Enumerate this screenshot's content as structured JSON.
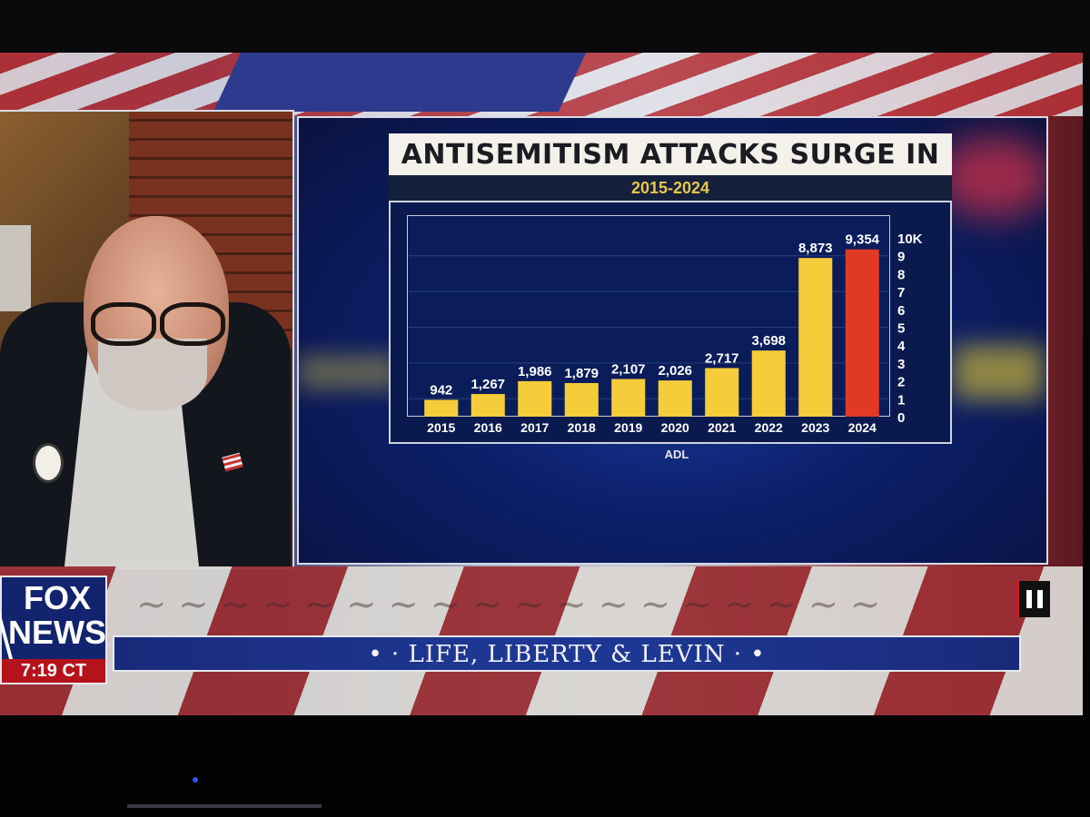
{
  "network": {
    "logo_line1": "FOX",
    "logo_line2": "NEWS",
    "time": "7:19 CT"
  },
  "show": {
    "title": "LIFE, LIBERTY & LEVIN",
    "title_prefix": "• ·",
    "title_suffix": "· •"
  },
  "graphic": {
    "source": "ADL"
  },
  "chart_data": {
    "type": "bar",
    "title": "ANTISEMITISM ATTACKS SURGE IN U.S.",
    "subtitle": "2015-2024",
    "categories": [
      "2015",
      "2016",
      "2017",
      "2018",
      "2019",
      "2020",
      "2021",
      "2022",
      "2023",
      "2024"
    ],
    "values": [
      942,
      1267,
      1986,
      1879,
      2107,
      2026,
      2717,
      3698,
      8873,
      9354
    ],
    "value_labels": [
      "942",
      "1,267",
      "1,986",
      "1,879",
      "2,107",
      "2,026",
      "2,717",
      "3,698",
      "8,873",
      "9,354"
    ],
    "ylim": [
      0,
      10000
    ],
    "y_ticks": [
      "0",
      "1",
      "2",
      "3",
      "4",
      "5",
      "6",
      "7",
      "8",
      "9",
      "10K"
    ],
    "y_axis_side": "right",
    "grid": true,
    "colors": {
      "bar": "#f5cd3a",
      "highlight": "#e03a25",
      "highlight_category": "2024",
      "text": "#ffffff"
    }
  },
  "colors": {
    "fox_blue": "#13246e",
    "fox_red": "#b5121b",
    "chart_title_bg": "#f3f1ea",
    "chart_subtitle": "#e8c64a"
  },
  "controls": {
    "pause_icon": "pause-icon"
  }
}
